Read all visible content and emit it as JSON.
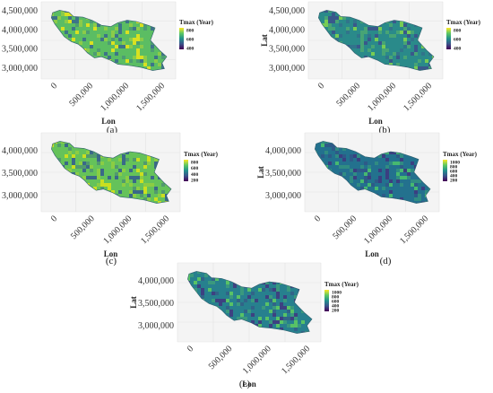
{
  "axis": {
    "xlabel": "Lon",
    "ylabel": "Lat"
  },
  "panels": [
    {
      "id": "a",
      "caption": "(a)",
      "yticks": [
        "4,500,000",
        "4,000,000",
        "3,500,000",
        "3,000,000"
      ],
      "xticks": [
        "0",
        "500,000",
        "1,000,000",
        "1,500,000"
      ],
      "legend": {
        "title": "Tmax (Year)",
        "ticks": [
          "800",
          "600",
          "400"
        ]
      },
      "palette": {
        "base": "#5bbd63",
        "hot": "#e6e419",
        "cold": "#3a6b8c"
      }
    },
    {
      "id": "b",
      "caption": "(b)",
      "yticks": [
        "4,500,000",
        "4,000,000",
        "3,500,000",
        "3,000,000"
      ],
      "xticks": [
        "0",
        "500,000",
        "1,000,000",
        "1,500,000"
      ],
      "legend": {
        "title": "Tmax (Year)",
        "ticks": [
          "800",
          "600",
          "400"
        ]
      },
      "palette": {
        "base": "#2a8a8a",
        "hot": "#7fd34e",
        "cold": "#3b528b"
      }
    },
    {
      "id": "c",
      "caption": "(c)",
      "yticks": [
        "4,000,000",
        "3,500,000",
        "3,000,000"
      ],
      "xticks": [
        "0",
        "500,000",
        "1,000,000",
        "1,500,000"
      ],
      "legend": {
        "title": "Tmax (Year)",
        "ticks": [
          "800",
          "600",
          "400",
          "200"
        ]
      },
      "palette": {
        "base": "#65c25a",
        "hot": "#d5e21a",
        "cold": "#355f8d"
      }
    },
    {
      "id": "d",
      "caption": "(d)",
      "yticks": [
        "4,000,000",
        "3,500,000",
        "3,000,000"
      ],
      "xticks": [
        "0",
        "500,000",
        "1,000,000",
        "1,500,000"
      ],
      "legend": {
        "title": "Tmax (Year)",
        "ticks": [
          "1000",
          "800",
          "600",
          "400",
          "200"
        ]
      },
      "palette": {
        "base": "#23718e",
        "hot": "#4ac16d",
        "cold": "#3e3a7f"
      }
    },
    {
      "id": "e",
      "caption": "(e)",
      "yticks": [
        "4,000,000",
        "3,500,000",
        "3,000,000"
      ],
      "xticks": [
        "0",
        "500,000",
        "1,000,000",
        "1,500,000"
      ],
      "legend": {
        "title": "Tmax (Year)",
        "ticks": [
          "1000",
          "800",
          "600",
          "400",
          "200"
        ]
      },
      "palette": {
        "base": "#27808e",
        "hot": "#5ec962",
        "cold": "#403a7f"
      }
    }
  ]
}
